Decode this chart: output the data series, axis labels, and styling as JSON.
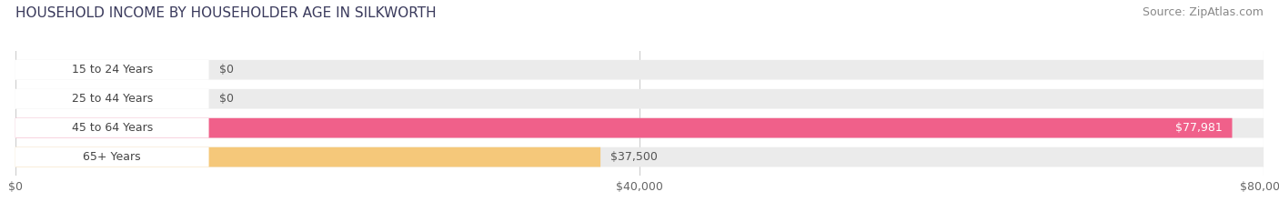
{
  "title": "HOUSEHOLD INCOME BY HOUSEHOLDER AGE IN SILKWORTH",
  "source": "Source: ZipAtlas.com",
  "categories": [
    "15 to 24 Years",
    "25 to 44 Years",
    "45 to 64 Years",
    "65+ Years"
  ],
  "values": [
    0,
    0,
    77981,
    37500
  ],
  "bar_colors": [
    "#62cdd4",
    "#a8aad8",
    "#f0608a",
    "#f5c87a"
  ],
  "value_labels": [
    "$0",
    "$0",
    "$77,981",
    "$37,500"
  ],
  "value_label_white": [
    false,
    false,
    true,
    false
  ],
  "value_label_inside": [
    false,
    false,
    true,
    true
  ],
  "xlim": [
    0,
    80000
  ],
  "xticks": [
    0,
    40000,
    80000
  ],
  "xtick_labels": [
    "$0",
    "$40,000",
    "$80,000"
  ],
  "background_color": "#ffffff",
  "bar_background_color": "#ebebeb",
  "title_fontsize": 11,
  "source_fontsize": 9,
  "label_fontsize": 9,
  "value_fontsize": 9,
  "tick_fontsize": 9
}
